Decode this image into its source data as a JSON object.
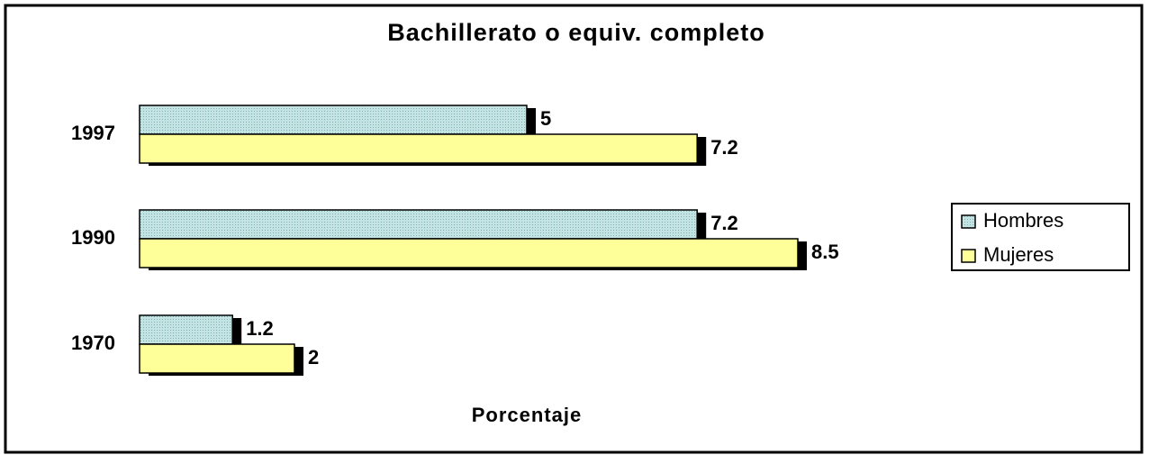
{
  "chart_data": {
    "type": "bar",
    "orientation": "horizontal",
    "title": "Bachillerato o equiv. completo",
    "x_label": "Porcentaje",
    "categories": [
      "1997",
      "1990",
      "1970"
    ],
    "series": [
      {
        "name": "Hombres",
        "color": "#b3dada",
        "values": [
          5,
          7.2,
          1.2
        ]
      },
      {
        "name": "Mujeres",
        "color": "#ffff99",
        "values": [
          7.2,
          8.5,
          2
        ]
      }
    ],
    "xlim": [
      0,
      10
    ],
    "legend": "right"
  }
}
